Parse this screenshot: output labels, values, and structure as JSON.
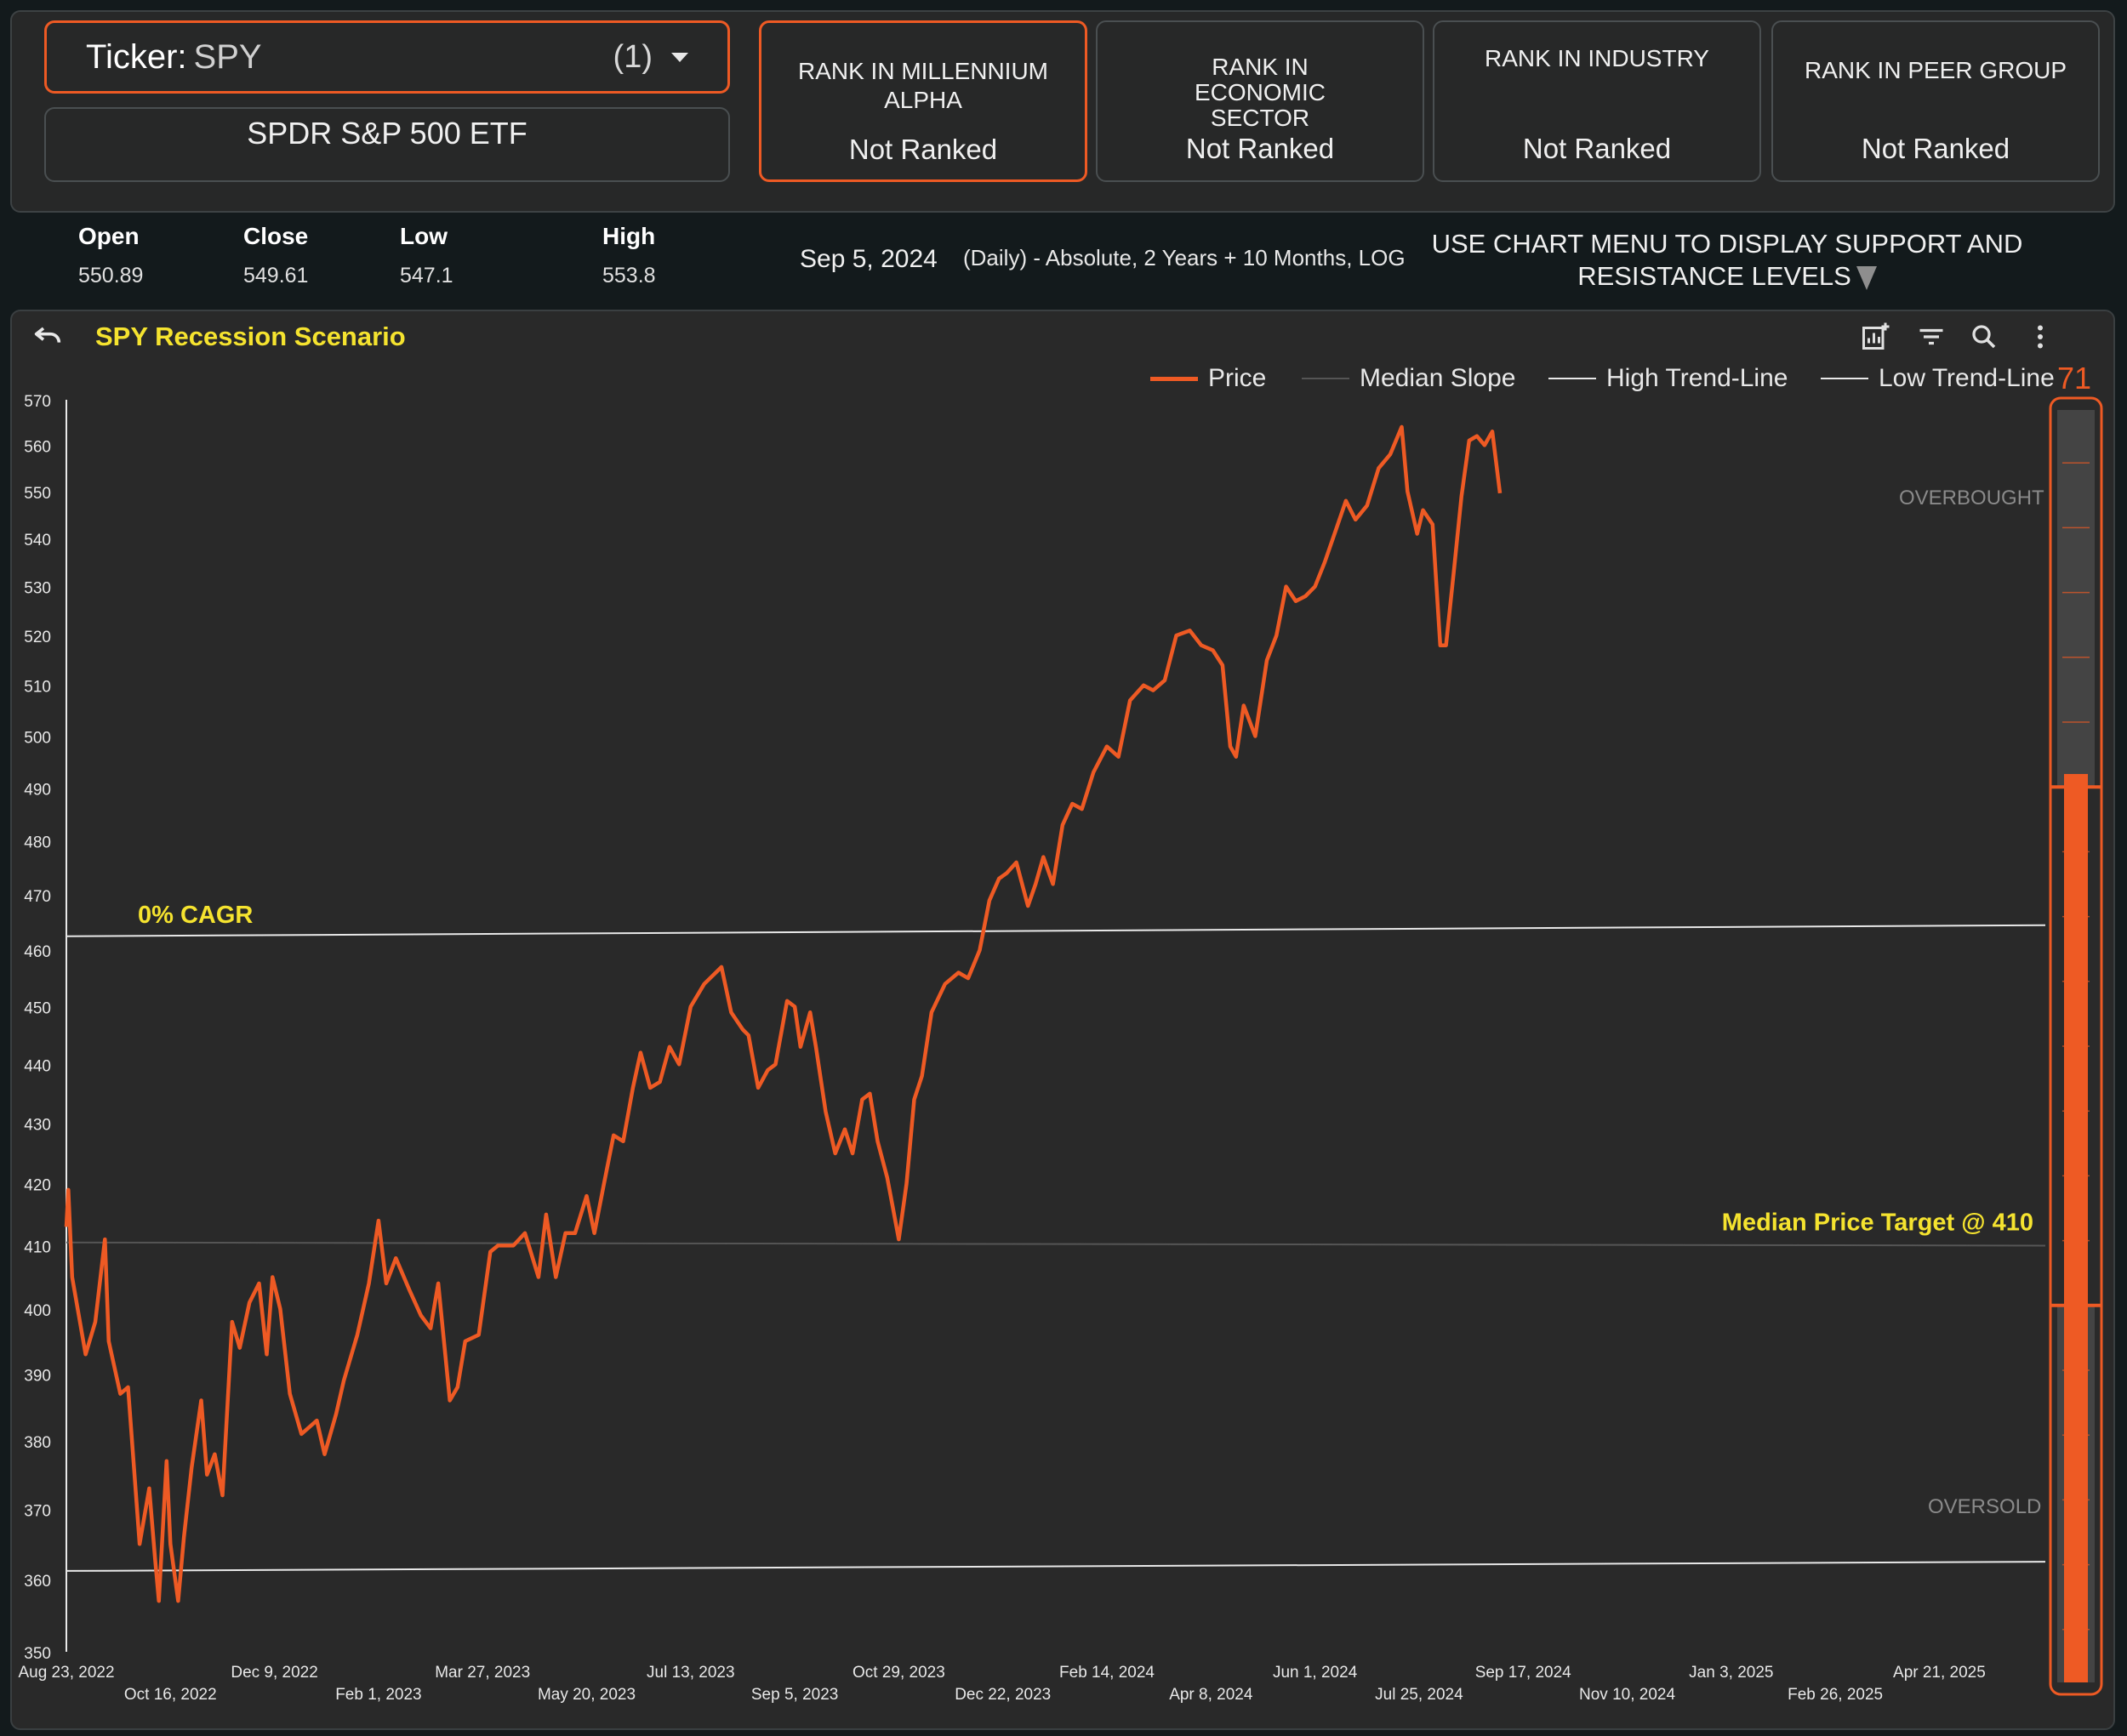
{
  "header": {
    "ticker_label": "Ticker:",
    "ticker_value": "SPY",
    "ticker_count": "(1)",
    "security_name": "SPDR S&P 500 ETF",
    "ranks": [
      {
        "title": "RANK IN MILLENNIUM ALPHA",
        "value": "Not Ranked"
      },
      {
        "title": "RANK IN ECONOMIC SECTOR",
        "value": "Not Ranked"
      },
      {
        "title": "RANK IN INDUSTRY",
        "value": "Not Ranked"
      },
      {
        "title": "RANK IN PEER GROUP",
        "value": "Not Ranked"
      }
    ]
  },
  "stats": {
    "open_label": "Open",
    "open": "550.89",
    "close_label": "Close",
    "close": "549.61",
    "low_label": "Low",
    "low": "547.1",
    "high_label": "High",
    "high": "553.8"
  },
  "date": "Sep 5, 2024",
  "chart_desc": "(Daily) - Absolute, 2 Years + 10 Months, LOG",
  "hint": "USE CHART MENU TO DISPLAY SUPPORT AND RESISTANCE LEVELS",
  "icons": [
    "undo-icon",
    "add-chart-icon",
    "filter-icon",
    "zoom-icon",
    "more-vert-icon",
    "caret-down-icon"
  ],
  "colors": {
    "accent": "#ee5a24",
    "annotation": "#f5e32f",
    "background": "#292929"
  },
  "indicator": {
    "value": "71",
    "overbought_label": "OVERBOUGHT",
    "oversold_label": "OVERSOLD",
    "range": [
      0,
      100
    ],
    "overbought": 70,
    "oversold": 30
  },
  "chart_data": {
    "type": "line",
    "title": "SPY Recession Scenario",
    "legend": [
      "Price",
      "Median Slope",
      "High Trend-Line",
      "Low Trend-Line"
    ],
    "legend_position": "top-right",
    "y_scale": "log",
    "ylim": [
      350,
      570
    ],
    "y_ticks": [
      350,
      360,
      370,
      380,
      390,
      400,
      410,
      420,
      430,
      440,
      450,
      460,
      470,
      480,
      490,
      500,
      510,
      520,
      530,
      540,
      550,
      560,
      570
    ],
    "xlim": [
      "2022-08-23",
      "2025-06-15"
    ],
    "x_ticks": [
      {
        "date": "2022-08-23",
        "label": "Aug 23, 2022"
      },
      {
        "date": "2022-10-16",
        "label": "Oct 16, 2022"
      },
      {
        "date": "2022-12-09",
        "label": "Dec 9, 2022"
      },
      {
        "date": "2023-02-01",
        "label": "Feb 1, 2023"
      },
      {
        "date": "2023-03-27",
        "label": "Mar 27, 2023"
      },
      {
        "date": "2023-05-20",
        "label": "May 20, 2023"
      },
      {
        "date": "2023-07-13",
        "label": "Jul 13, 2023"
      },
      {
        "date": "2023-09-05",
        "label": "Sep 5, 2023"
      },
      {
        "date": "2023-10-29",
        "label": "Oct 29, 2023"
      },
      {
        "date": "2023-12-22",
        "label": "Dec 22, 2023"
      },
      {
        "date": "2024-02-14",
        "label": "Feb 14, 2024"
      },
      {
        "date": "2024-04-08",
        "label": "Apr 8, 2024"
      },
      {
        "date": "2024-06-01",
        "label": "Jun 1, 2024"
      },
      {
        "date": "2024-07-25",
        "label": "Jul 25, 2024"
      },
      {
        "date": "2024-09-17",
        "label": "Sep 17, 2024"
      },
      {
        "date": "2024-11-10",
        "label": "Nov 10, 2024"
      },
      {
        "date": "2025-01-03",
        "label": "Jan 3, 2025"
      },
      {
        "date": "2025-02-26",
        "label": "Feb 26, 2025"
      },
      {
        "date": "2025-04-21",
        "label": "Apr 21, 2025"
      }
    ],
    "series": [
      {
        "name": "Price",
        "points": [
          [
            "2022-08-23",
            413
          ],
          [
            "2022-08-24",
            419
          ],
          [
            "2022-08-26",
            405
          ],
          [
            "2022-09-02",
            393
          ],
          [
            "2022-09-07",
            398
          ],
          [
            "2022-09-12",
            411
          ],
          [
            "2022-09-14",
            395
          ],
          [
            "2022-09-20",
            387
          ],
          [
            "2022-09-24",
            388
          ],
          [
            "2022-09-30",
            365
          ],
          [
            "2022-10-05",
            373
          ],
          [
            "2022-10-08",
            363
          ],
          [
            "2022-10-10",
            357
          ],
          [
            "2022-10-14",
            377
          ],
          [
            "2022-10-16",
            365
          ],
          [
            "2022-10-20",
            357
          ],
          [
            "2022-10-23",
            366
          ],
          [
            "2022-10-27",
            376
          ],
          [
            "2022-11-01",
            386
          ],
          [
            "2022-11-04",
            375
          ],
          [
            "2022-11-08",
            378
          ],
          [
            "2022-11-12",
            372
          ],
          [
            "2022-11-17",
            398
          ],
          [
            "2022-11-21",
            394
          ],
          [
            "2022-11-26",
            401
          ],
          [
            "2022-12-01",
            404
          ],
          [
            "2022-12-05",
            393
          ],
          [
            "2022-12-08",
            405
          ],
          [
            "2022-12-12",
            400
          ],
          [
            "2022-12-17",
            387
          ],
          [
            "2022-12-23",
            381
          ],
          [
            "2022-12-31",
            383
          ],
          [
            "2023-01-04",
            378
          ],
          [
            "2023-01-10",
            384
          ],
          [
            "2023-01-14",
            389
          ],
          [
            "2023-01-21",
            396
          ],
          [
            "2023-01-27",
            404
          ],
          [
            "2023-02-01",
            414
          ],
          [
            "2023-02-05",
            404
          ],
          [
            "2023-02-10",
            408
          ],
          [
            "2023-02-17",
            403
          ],
          [
            "2023-02-23",
            399
          ],
          [
            "2023-02-28",
            397
          ],
          [
            "2023-03-04",
            404
          ],
          [
            "2023-03-10",
            386
          ],
          [
            "2023-03-14",
            388
          ],
          [
            "2023-03-18",
            395
          ],
          [
            "2023-03-25",
            396
          ],
          [
            "2023-03-31",
            409
          ],
          [
            "2023-04-04",
            410
          ],
          [
            "2023-04-12",
            410
          ],
          [
            "2023-04-18",
            412
          ],
          [
            "2023-04-21",
            409
          ],
          [
            "2023-04-25",
            405
          ],
          [
            "2023-04-29",
            415
          ],
          [
            "2023-05-04",
            405
          ],
          [
            "2023-05-09",
            412
          ],
          [
            "2023-05-14",
            412
          ],
          [
            "2023-05-20",
            418
          ],
          [
            "2023-05-24",
            412
          ],
          [
            "2023-05-29",
            420
          ],
          [
            "2023-06-03",
            428
          ],
          [
            "2023-06-08",
            427
          ],
          [
            "2023-06-13",
            436
          ],
          [
            "2023-06-17",
            442
          ],
          [
            "2023-06-22",
            436
          ],
          [
            "2023-06-27",
            437
          ],
          [
            "2023-07-02",
            443
          ],
          [
            "2023-07-07",
            440
          ],
          [
            "2023-07-13",
            450
          ],
          [
            "2023-07-20",
            454
          ],
          [
            "2023-07-26",
            456
          ],
          [
            "2023-07-29",
            457
          ],
          [
            "2023-08-03",
            449
          ],
          [
            "2023-08-09",
            446
          ],
          [
            "2023-08-12",
            445
          ],
          [
            "2023-08-17",
            436
          ],
          [
            "2023-08-22",
            439
          ],
          [
            "2023-08-26",
            440
          ],
          [
            "2023-09-01",
            451
          ],
          [
            "2023-09-05",
            450
          ],
          [
            "2023-09-08",
            443
          ],
          [
            "2023-09-13",
            449
          ],
          [
            "2023-09-16",
            443
          ],
          [
            "2023-09-21",
            432
          ],
          [
            "2023-09-26",
            425
          ],
          [
            "2023-10-01",
            429
          ],
          [
            "2023-10-05",
            425
          ],
          [
            "2023-10-10",
            434
          ],
          [
            "2023-10-14",
            435
          ],
          [
            "2023-10-18",
            427
          ],
          [
            "2023-10-23",
            421
          ],
          [
            "2023-10-26",
            416
          ],
          [
            "2023-10-29",
            411
          ],
          [
            "2023-11-02",
            420
          ],
          [
            "2023-11-06",
            434
          ],
          [
            "2023-11-10",
            438
          ],
          [
            "2023-11-15",
            449
          ],
          [
            "2023-11-22",
            454
          ],
          [
            "2023-11-29",
            456
          ],
          [
            "2023-12-04",
            455
          ],
          [
            "2023-12-10",
            460
          ],
          [
            "2023-12-15",
            469
          ],
          [
            "2023-12-20",
            473
          ],
          [
            "2023-12-24",
            474
          ],
          [
            "2023-12-29",
            476
          ],
          [
            "2024-01-04",
            468
          ],
          [
            "2024-01-08",
            472
          ],
          [
            "2024-01-12",
            477
          ],
          [
            "2024-01-17",
            472
          ],
          [
            "2024-01-22",
            483
          ],
          [
            "2024-01-27",
            487
          ],
          [
            "2024-02-01",
            486
          ],
          [
            "2024-02-07",
            493
          ],
          [
            "2024-02-14",
            498
          ],
          [
            "2024-02-20",
            496
          ],
          [
            "2024-02-26",
            507
          ],
          [
            "2024-03-04",
            510
          ],
          [
            "2024-03-09",
            509
          ],
          [
            "2024-03-15",
            511
          ],
          [
            "2024-03-21",
            520
          ],
          [
            "2024-03-28",
            521
          ],
          [
            "2024-04-03",
            518
          ],
          [
            "2024-04-09",
            517
          ],
          [
            "2024-04-14",
            514
          ],
          [
            "2024-04-18",
            498
          ],
          [
            "2024-04-21",
            496
          ],
          [
            "2024-04-25",
            506
          ],
          [
            "2024-05-01",
            500
          ],
          [
            "2024-05-07",
            515
          ],
          [
            "2024-05-12",
            520
          ],
          [
            "2024-05-17",
            530
          ],
          [
            "2024-05-22",
            527
          ],
          [
            "2024-05-27",
            528
          ],
          [
            "2024-06-01",
            530
          ],
          [
            "2024-06-06",
            535
          ],
          [
            "2024-06-12",
            542
          ],
          [
            "2024-06-17",
            548
          ],
          [
            "2024-06-22",
            544
          ],
          [
            "2024-06-28",
            547
          ],
          [
            "2024-07-04",
            555
          ],
          [
            "2024-07-10",
            558
          ],
          [
            "2024-07-16",
            564
          ],
          [
            "2024-07-19",
            550
          ],
          [
            "2024-07-24",
            541
          ],
          [
            "2024-07-27",
            546
          ],
          [
            "2024-08-01",
            543
          ],
          [
            "2024-08-05",
            518
          ],
          [
            "2024-08-08",
            518
          ],
          [
            "2024-08-12",
            533
          ],
          [
            "2024-08-16",
            549
          ],
          [
            "2024-08-20",
            561
          ],
          [
            "2024-08-24",
            562
          ],
          [
            "2024-08-28",
            560
          ],
          [
            "2024-09-01",
            563
          ],
          [
            "2024-09-05",
            549.61
          ]
        ]
      },
      {
        "name": "Median Slope",
        "points": [
          [
            "2022-08-23",
            410.5
          ],
          [
            "2025-06-15",
            410
          ]
        ]
      },
      {
        "name": "High Trend-Line",
        "points": [
          [
            "2022-08-23",
            462.5
          ],
          [
            "2025-06-15",
            464.5
          ]
        ]
      },
      {
        "name": "Low Trend-Line",
        "points": [
          [
            "2022-08-23",
            361.2
          ],
          [
            "2025-06-15",
            362.5
          ]
        ]
      }
    ],
    "annotations": [
      {
        "text": "0% CAGR",
        "anchor": "High Trend-Line",
        "position": "start"
      },
      {
        "text": "Median Price Target @ 410",
        "anchor": "Median Slope",
        "position": "end"
      }
    ]
  }
}
